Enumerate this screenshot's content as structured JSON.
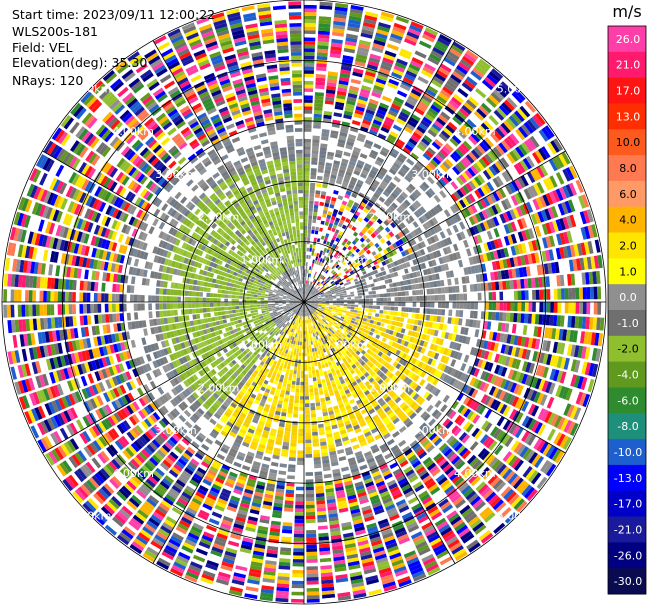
{
  "header": {
    "start_time": "Start time: 2023/09/11 12:00:22",
    "station": "WLS200s-181",
    "field": "Field: VEL",
    "elevation": "Elevation(deg): 35.30",
    "nrays": "NRays: 120"
  },
  "colorbar": {
    "unit": "m/s",
    "ticks": [
      "26.0",
      "21.0",
      "17.0",
      "13.0",
      "10.0",
      "8.0",
      "6.0",
      "4.0",
      "2.0",
      "1.0",
      "0.0",
      "-1.0",
      "-2.0",
      "-4.0",
      "-6.0",
      "-8.0",
      "-10.0",
      "-13.0",
      "-17.0",
      "-21.0",
      "-26.0",
      "-30.0"
    ],
    "colors": [
      "#ff3ea9",
      "#ff1a6e",
      "#ff1414",
      "#ff2e00",
      "#ff5a1e",
      "#ff7a50",
      "#ff9a66",
      "#ffb400",
      "#ffe600",
      "#ffff00",
      "#8f8f8f",
      "#6f6f6f",
      "#8fbf2e",
      "#5f9a1f",
      "#2e8b2e",
      "#1e8f7a",
      "#1e5fd0",
      "#0000ff",
      "#0000c8",
      "#1a1a9c",
      "#000080",
      "#0a0a50"
    ]
  },
  "chart_data": {
    "type": "heatmap",
    "title": "",
    "field": "VEL",
    "nrays": 120,
    "elevation_deg": 35.3,
    "range_unit": "km",
    "max_range_km": 5.0,
    "range_rings_km": [
      1.0,
      2.0,
      3.0,
      4.0,
      5.0
    ],
    "range_labels": [
      "1.00km",
      "2.00km",
      "3.00km",
      "4.00km",
      "5.00km"
    ],
    "color_scale_min": -30.0,
    "color_scale_max": 30.0,
    "regions": [
      {
        "range_km": [
          0.0,
          1.0
        ],
        "azimuth_deg": [
          0,
          360
        ],
        "velocity_ms": 0.0,
        "note": "near-zero gray"
      },
      {
        "range_km": [
          0.6,
          2.5
        ],
        "azimuth_deg": [
          220,
          360
        ],
        "velocity_ms": -2.0
      },
      {
        "range_km": [
          0.6,
          2.6
        ],
        "azimuth_deg": [
          95,
          215
        ],
        "velocity_ms": 2.0
      },
      {
        "range_km": [
          2.2,
          3.0
        ],
        "azimuth_deg": [
          0,
          360
        ],
        "velocity_ms": 0.0
      },
      {
        "range_km": [
          3.0,
          5.0
        ],
        "azimuth_deg": [
          0,
          360
        ],
        "velocity_ms": "noise"
      }
    ]
  }
}
